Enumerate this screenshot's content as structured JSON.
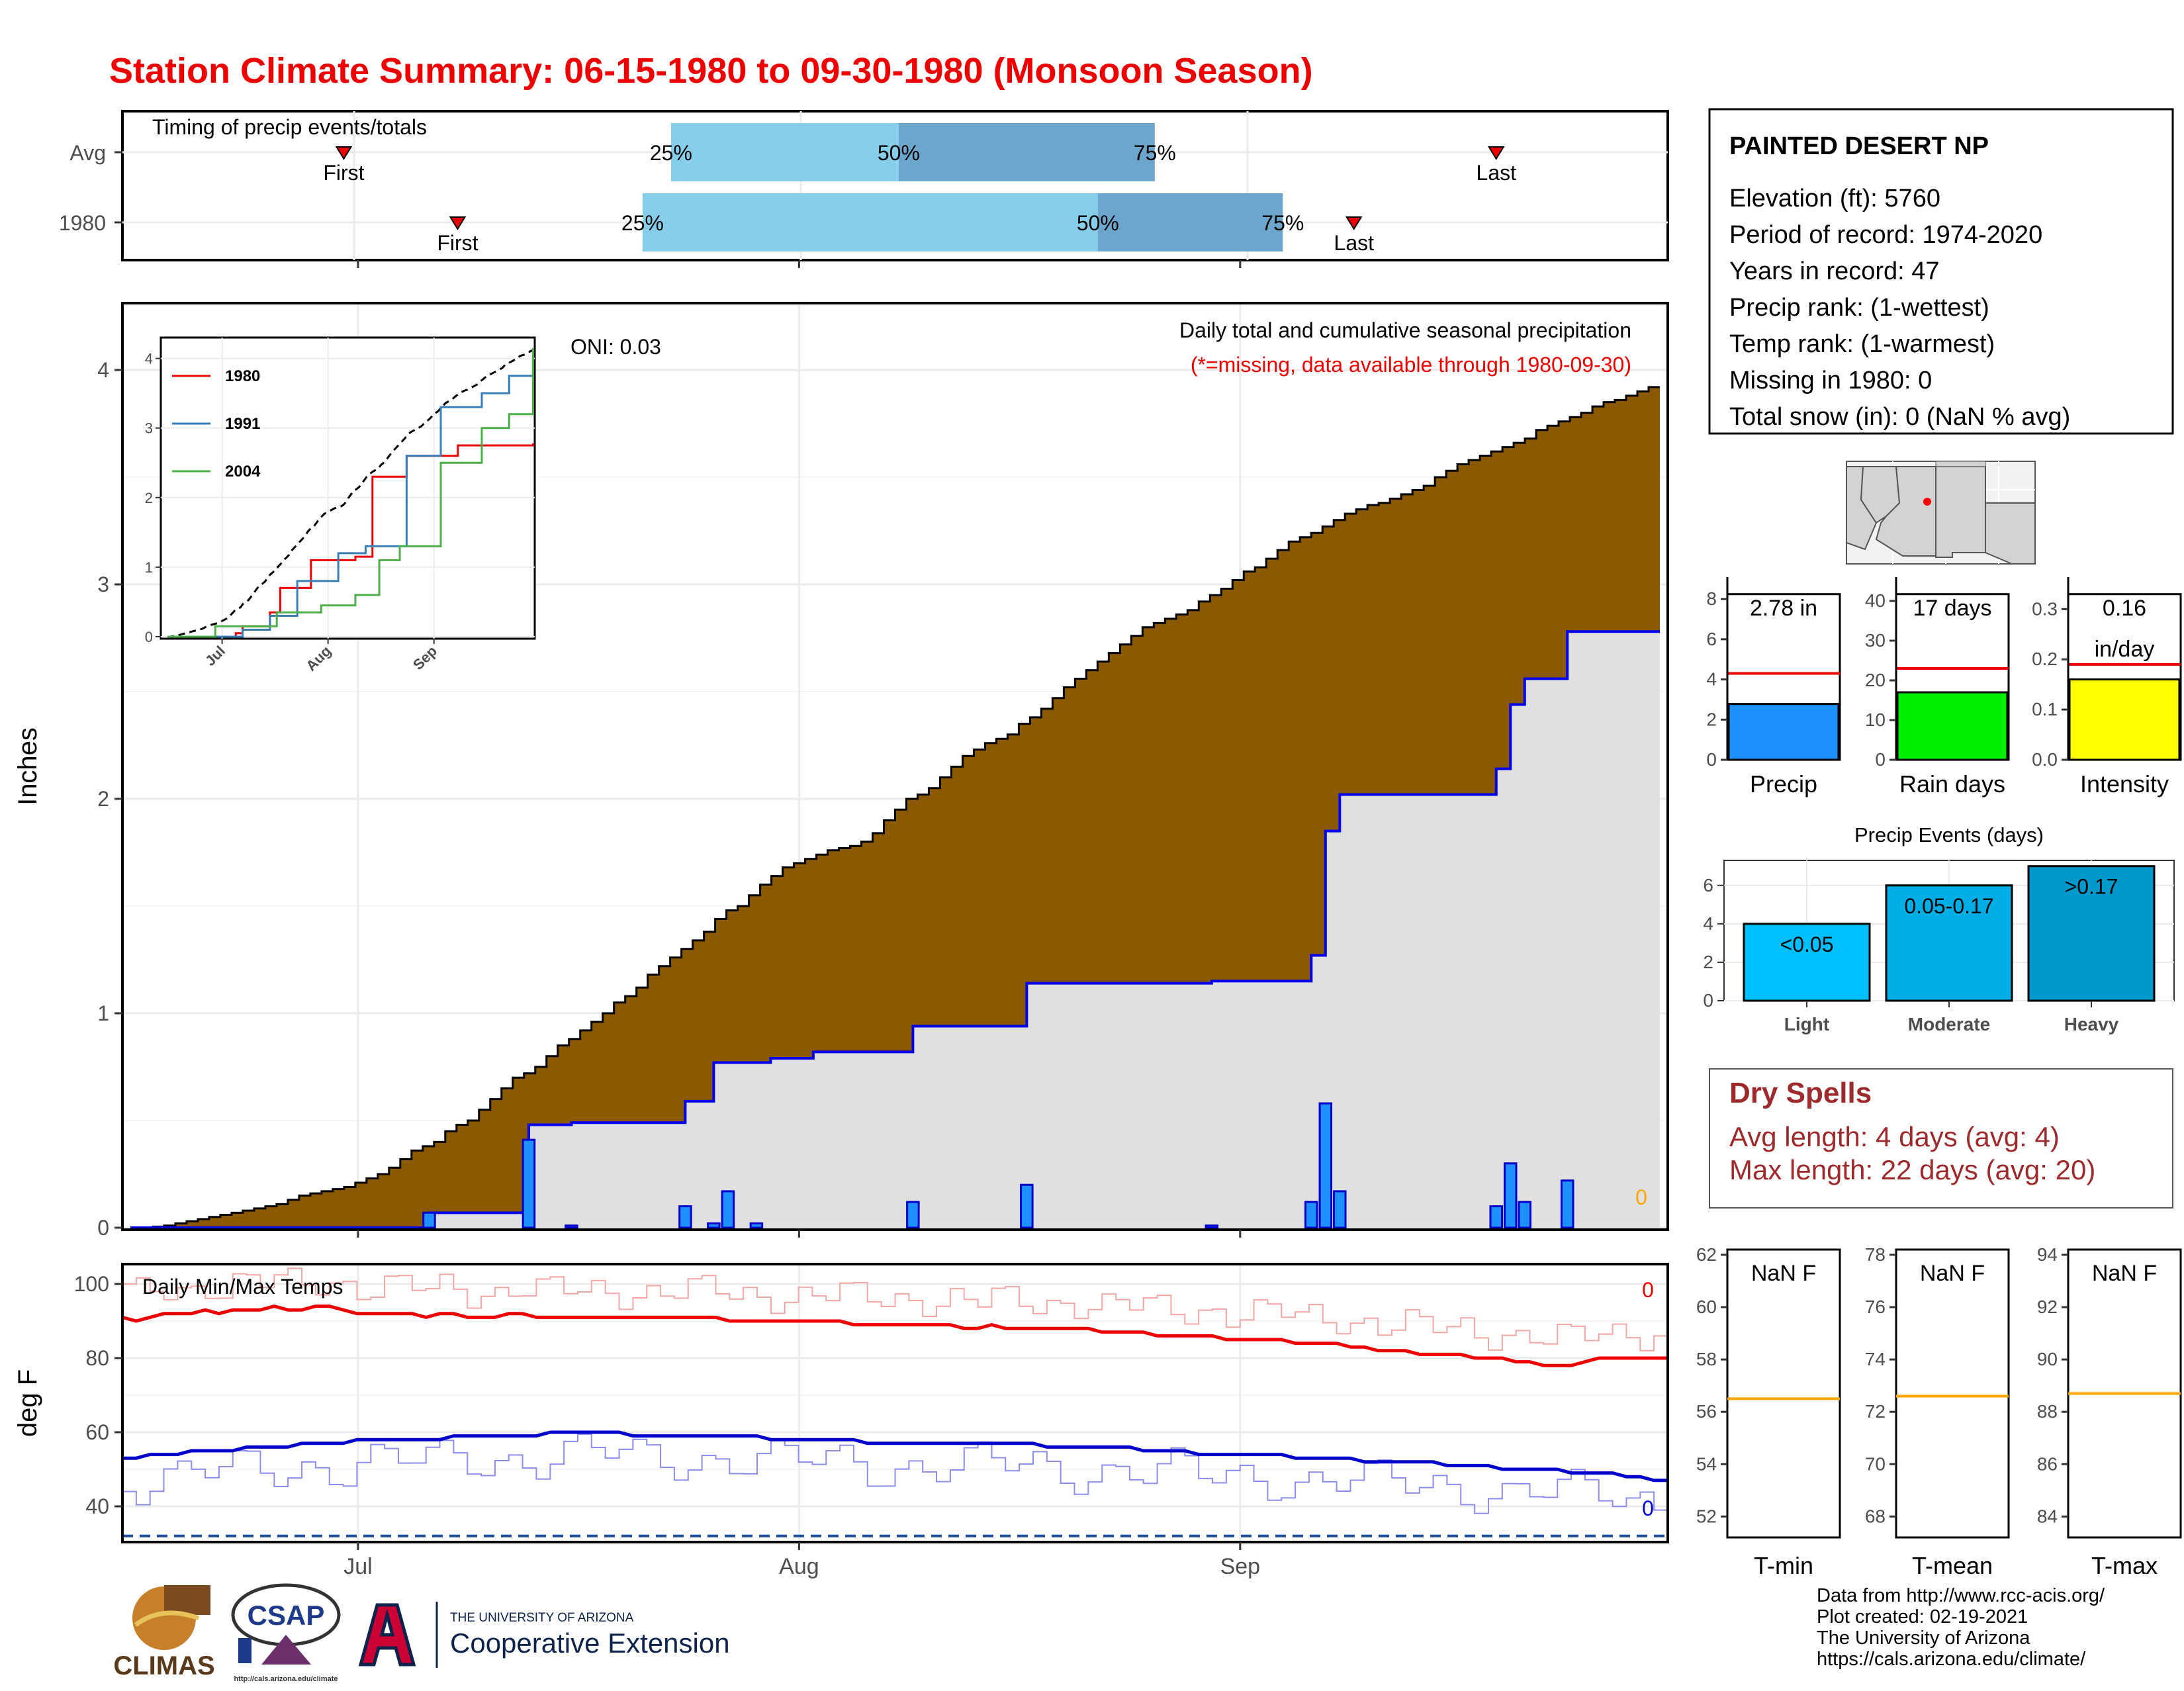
{
  "title": "Station Climate Summary: 06-15-1980 to 09-30-1980 (Monsoon Season)",
  "colors": {
    "title": "#ee0000",
    "cum_avg": "#8b5a00",
    "cum_year": "#e0e0e0",
    "bars": "#1e90ff",
    "tmax": "#ee0000",
    "tmin": "#0000cc",
    "orange": "#ffa500"
  },
  "timing": {
    "label": "Timing of precip events/totals",
    "rows": [
      {
        "name": "Avg",
        "first_label": "First",
        "last_label": "Last",
        "p25": "25%",
        "p50": "50%",
        "p75": "75%"
      },
      {
        "name": "1980",
        "first_label": "First",
        "last_label": "Last",
        "p25": "25%",
        "p50": "50%",
        "p75": "75%"
      }
    ]
  },
  "main": {
    "ylabel": "Inches",
    "oni": "ONI: 0.03",
    "title1": "Daily total and cumulative seasonal precipitation",
    "title2": "(*=missing, data available through 1980-09-30)",
    "missing_count": "0",
    "yticks": [
      "0",
      "1",
      "2",
      "3",
      "4"
    ],
    "xticks": [
      "Jul",
      "Aug",
      "Sep"
    ]
  },
  "inset": {
    "yticks": [
      "0",
      "1",
      "2",
      "3",
      "4"
    ],
    "xticks": [
      "Jul",
      "Aug",
      "Sep"
    ],
    "legend": [
      "1980",
      "1991",
      "2004"
    ]
  },
  "temps": {
    "label": "Daily Min/Max Temps",
    "ylabel": "deg F",
    "yticks": [
      "40",
      "60",
      "80",
      "100"
    ],
    "xticks": [
      "Jul",
      "Aug",
      "Sep"
    ],
    "tmax_missing": "0",
    "tmin_missing": "0"
  },
  "info": {
    "station": "PAINTED DESERT NP",
    "lines": [
      "Elevation (ft): 5760",
      "Period of record: 1974-2020",
      "Years in record: 47",
      "Precip rank:  (1-wettest)",
      "Temp rank:  (1-warmest)",
      "Missing in 1980: 0",
      "Total snow (in): 0 (NaN % avg)"
    ]
  },
  "mini": [
    {
      "label": "Precip",
      "value1": "2.78 in",
      "value2": "",
      "yticks": [
        "0",
        "2",
        "4",
        "6",
        "8"
      ]
    },
    {
      "label": "Rain days",
      "value1": "17 days",
      "value2": "",
      "yticks": [
        "0",
        "10",
        "20",
        "30",
        "40"
      ]
    },
    {
      "label": "Intensity",
      "value1": "0.16",
      "value2": "in/day",
      "yticks": [
        "0.0",
        "0.1",
        "0.2",
        "0.3"
      ]
    }
  ],
  "events": {
    "title": "Precip Events (days)",
    "yticks": [
      "0",
      "2",
      "4",
      "6"
    ],
    "bars": [
      {
        "label": "Light",
        "range": "<0.05"
      },
      {
        "label": "Moderate",
        "range": "0.05-0.17"
      },
      {
        "label": "Heavy",
        "range": ">0.17"
      }
    ]
  },
  "dry": {
    "title": "Dry Spells",
    "line1": "Avg length: 4 days (avg: 4)",
    "line2": "Max length: 22 days (avg: 20)"
  },
  "temp_boxes": [
    {
      "label": "T-min",
      "value": "NaN F",
      "yticks": [
        "52",
        "54",
        "56",
        "58",
        "60",
        "62"
      ]
    },
    {
      "label": "T-mean",
      "value": "NaN F",
      "yticks": [
        "68",
        "70",
        "72",
        "74",
        "76",
        "78"
      ]
    },
    {
      "label": "T-max",
      "value": "NaN F",
      "yticks": [
        "84",
        "86",
        "88",
        "90",
        "92",
        "94"
      ]
    }
  ],
  "logos": {
    "climas": "CLIMAS",
    "csap": "CSAP",
    "csap_url": "http://cals.arizona.edu/climate",
    "ua_small": "THE UNIVERSITY OF ARIZONA",
    "ua_big": "Cooperative Extension"
  },
  "footer": [
    "Data from http://www.rcc-acis.org/",
    "Plot created: 02-19-2021",
    "The University of Arizona",
    "https://cals.arizona.edu/climate/"
  ],
  "chart_data": [
    {
      "type": "bar",
      "name": "timing",
      "categories": [
        "Avg",
        "1980"
      ],
      "x_dates": {
        "first": [
          "1980-06-30",
          "1980-07-08"
        ],
        "p25": [
          "1980-07-23",
          "1980-07-21"
        ],
        "p50": [
          "1980-08-08",
          "1980-08-22"
        ],
        "p75": [
          "1980-08-26",
          "1980-09-04"
        ],
        "last": [
          "1980-09-19",
          "1980-09-09"
        ]
      }
    },
    {
      "type": "area",
      "name": "cumulative precipitation",
      "xlim": [
        "1980-06-15",
        "1980-09-30"
      ],
      "ylim": [
        0,
        4.2
      ],
      "avg_cum": [
        0,
        0,
        0.005,
        0.01,
        0.02,
        0.03,
        0.04,
        0.05,
        0.06,
        0.07,
        0.08,
        0.09,
        0.1,
        0.11,
        0.13,
        0.15,
        0.16,
        0.17,
        0.18,
        0.19,
        0.21,
        0.23,
        0.25,
        0.28,
        0.32,
        0.36,
        0.38,
        0.4,
        0.45,
        0.48,
        0.5,
        0.55,
        0.6,
        0.65,
        0.7,
        0.72,
        0.75,
        0.8,
        0.85,
        0.88,
        0.92,
        0.96,
        1.0,
        1.05,
        1.08,
        1.12,
        1.18,
        1.22,
        1.26,
        1.3,
        1.34,
        1.38,
        1.44,
        1.48,
        1.5,
        1.55,
        1.6,
        1.64,
        1.68,
        1.7,
        1.72,
        1.74,
        1.76,
        1.77,
        1.78,
        1.8,
        1.84,
        1.9,
        1.95,
        2.0,
        2.02,
        2.05,
        2.1,
        2.15,
        2.2,
        2.23,
        2.26,
        2.28,
        2.3,
        2.35,
        2.38,
        2.42,
        2.47,
        2.52,
        2.56,
        2.6,
        2.64,
        2.68,
        2.72,
        2.76,
        2.8,
        2.82,
        2.84,
        2.86,
        2.88,
        2.92,
        2.95,
        2.98,
        3.02,
        3.06,
        3.08,
        3.12,
        3.16,
        3.2,
        3.22,
        3.24,
        3.27,
        3.3,
        3.33,
        3.35,
        3.37,
        3.38,
        3.4,
        3.42,
        3.44,
        3.46,
        3.5,
        3.53,
        3.56,
        3.58,
        3.6,
        3.62,
        3.64,
        3.66,
        3.68,
        3.72,
        3.74,
        3.76,
        3.78,
        3.8,
        3.83,
        3.85,
        3.86,
        3.88,
        3.9,
        3.92
      ],
      "year_cum_steps": [
        [
          "06-15",
          0
        ],
        [
          "07-06",
          0.07
        ],
        [
          "07-13",
          0.48
        ],
        [
          "07-16",
          0.49
        ],
        [
          "07-24",
          0.59
        ],
        [
          "07-26",
          0.77
        ],
        [
          "07-30",
          0.79
        ],
        [
          "08-02",
          0.82
        ],
        [
          "08-09",
          0.94
        ],
        [
          "08-17",
          1.14
        ],
        [
          "08-30",
          1.15
        ],
        [
          "09-06",
          1.27
        ],
        [
          "09-07",
          1.85
        ],
        [
          "09-08",
          2.02
        ],
        [
          "09-19",
          2.14
        ],
        [
          "09-20",
          2.44
        ],
        [
          "09-21",
          2.56
        ],
        [
          "09-24",
          2.78
        ],
        [
          "09-30",
          2.78
        ]
      ],
      "daily_bars": [
        [
          "07-06",
          0.07
        ],
        [
          "07-13",
          0.41
        ],
        [
          "07-16",
          0.01
        ],
        [
          "07-24",
          0.1
        ],
        [
          "07-26",
          0.02
        ],
        [
          "07-26b",
          0.17
        ],
        [
          "07-29",
          0.02
        ],
        [
          "08-09",
          0.12
        ],
        [
          "08-17",
          0.2
        ],
        [
          "08-30",
          0.01
        ],
        [
          "09-06",
          0.12
        ],
        [
          "09-07",
          0.58
        ],
        [
          "09-08",
          0.17
        ],
        [
          "09-19",
          0.1
        ],
        [
          "09-20",
          0.3
        ],
        [
          "09-21",
          0.12
        ],
        [
          "09-24",
          0.22
        ]
      ]
    },
    {
      "type": "line",
      "name": "inset cumulative",
      "ylim": [
        0,
        4.2
      ],
      "series": [
        {
          "name": "1980",
          "color": "#ee0000"
        },
        {
          "name": "1991",
          "color": "#377eb8"
        },
        {
          "name": "2004",
          "color": "#4daf4a"
        }
      ]
    },
    {
      "type": "line",
      "name": "daily temps",
      "ylim": [
        30,
        105
      ],
      "tmax_avg": [
        91,
        90,
        91,
        92,
        92,
        92,
        93,
        92,
        93,
        93,
        93,
        94,
        93,
        93,
        94,
        94,
        93,
        92,
        92,
        92,
        92,
        92,
        91,
        92,
        92,
        91,
        91,
        91,
        92,
        92,
        91,
        91,
        91,
        91,
        91,
        91,
        91,
        91,
        91,
        91,
        91,
        91,
        91,
        91,
        90,
        90,
        90,
        90,
        90,
        90,
        90,
        90,
        90,
        89,
        89,
        89,
        89,
        89,
        89,
        89,
        89,
        88,
        88,
        89,
        88,
        88,
        88,
        88,
        88,
        88,
        88,
        87,
        87,
        87,
        87,
        86,
        86,
        86,
        86,
        86,
        85,
        85,
        85,
        85,
        85,
        84,
        84,
        84,
        84,
        83,
        83,
        82,
        82,
        82,
        81,
        81,
        81,
        81,
        80,
        80,
        80,
        79,
        79,
        78,
        78,
        78,
        79,
        80,
        80,
        80,
        80,
        80,
        80
      ],
      "tmin_avg": [
        53,
        53,
        54,
        54,
        54,
        55,
        55,
        55,
        55,
        56,
        56,
        56,
        56,
        57,
        57,
        57,
        57,
        58,
        58,
        58,
        58,
        58,
        58,
        58,
        59,
        59,
        59,
        59,
        59,
        59,
        59,
        60,
        60,
        60,
        60,
        60,
        60,
        59,
        59,
        59,
        59,
        59,
        59,
        59,
        59,
        59,
        59,
        58,
        58,
        58,
        58,
        58,
        58,
        58,
        57,
        57,
        57,
        57,
        57,
        57,
        57,
        57,
        57,
        57,
        57,
        57,
        57,
        56,
        56,
        56,
        56,
        56,
        56,
        56,
        55,
        55,
        55,
        55,
        54,
        54,
        54,
        54,
        54,
        54,
        54,
        53,
        53,
        53,
        53,
        53,
        52,
        52,
        52,
        52,
        52,
        52,
        51,
        51,
        51,
        51,
        50,
        50,
        50,
        50,
        50,
        49,
        49,
        49,
        49,
        48,
        48,
        47,
        47
      ],
      "freezing_line": 32
    },
    {
      "type": "bar",
      "name": "season totals",
      "categories": [
        "Precip",
        "Rain days",
        "Intensity"
      ],
      "values": [
        2.78,
        17,
        0.16
      ],
      "averages": [
        4.3,
        23,
        0.19
      ],
      "ylims": [
        [
          0,
          8.5
        ],
        [
          0,
          43
        ],
        [
          0,
          0.34
        ]
      ]
    },
    {
      "type": "bar",
      "name": "precip events",
      "categories": [
        "Light",
        "Moderate",
        "Heavy"
      ],
      "values": [
        4,
        6,
        7
      ],
      "ylim": [
        0,
        7.3
      ]
    },
    {
      "type": "bar",
      "name": "temperature boxes",
      "categories": [
        "T-min",
        "T-mean",
        "T-max"
      ],
      "averages": [
        56.5,
        72.6,
        88.7
      ],
      "ylims": [
        [
          51.2,
          62.2
        ],
        [
          67.2,
          78.2
        ],
        [
          83.2,
          94.2
        ]
      ]
    }
  ]
}
